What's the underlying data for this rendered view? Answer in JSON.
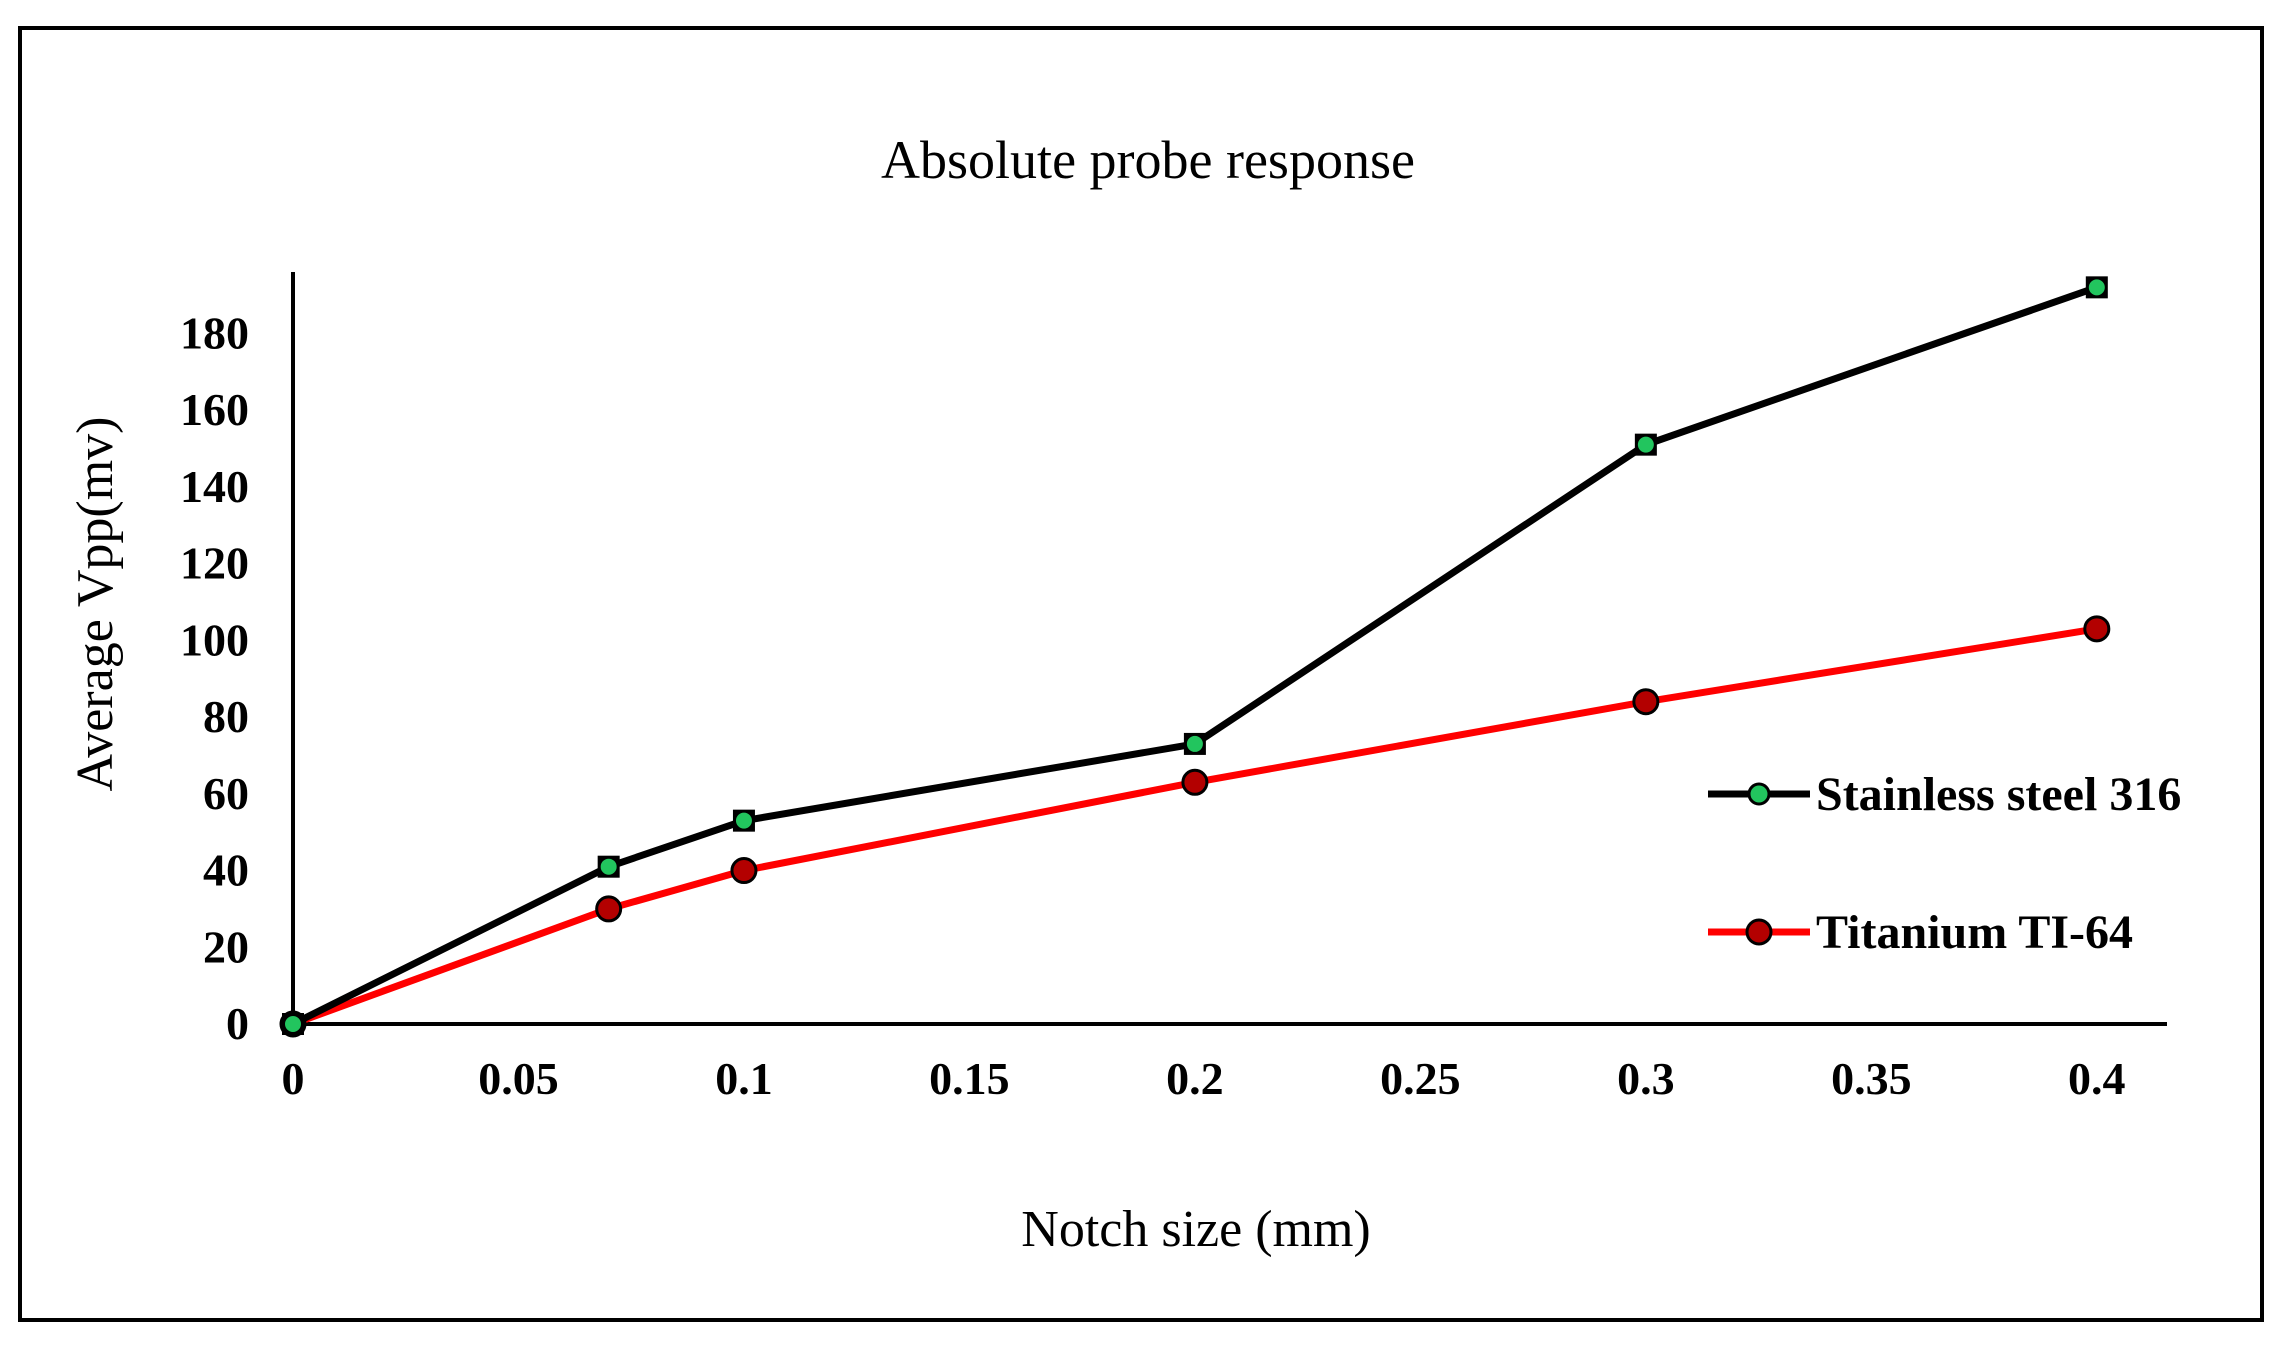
{
  "chart_data": {
    "type": "line",
    "title": "Absolute probe response",
    "xlabel": "Notch size (mm)",
    "ylabel": "Average Vpp(mv)",
    "x": [
      0,
      0.07,
      0.1,
      0.2,
      0.3,
      0.4
    ],
    "xlim": [
      0,
      0.42
    ],
    "ylim": [
      0,
      196
    ],
    "xticks": [
      0,
      0.05,
      0.1,
      0.15,
      0.2,
      0.25,
      0.3,
      0.35,
      0.4
    ],
    "xtick_labels": [
      "0",
      "0.05",
      "0.1",
      "0.15",
      "0.2",
      "0.25",
      "0.3",
      "0.35",
      "0.4"
    ],
    "yticks": [
      0,
      20,
      40,
      60,
      80,
      100,
      120,
      140,
      160,
      180
    ],
    "ytick_labels": [
      "0",
      "20",
      "40",
      "60",
      "80",
      "100",
      "120",
      "140",
      "160",
      "180"
    ],
    "grid": false,
    "legend_position": "right",
    "series": [
      {
        "name": "Stainless steel 316",
        "values": [
          0,
          41,
          53,
          73,
          151,
          192
        ],
        "line_color": "#000000",
        "marker_color": "#22c55e",
        "marker": "circle-on-square"
      },
      {
        "name": "Titanium TI-64",
        "values": [
          0,
          30,
          40,
          63,
          84,
          103
        ],
        "line_color": "#ff0000",
        "marker_color": "#b30000",
        "marker": "circle"
      }
    ]
  }
}
